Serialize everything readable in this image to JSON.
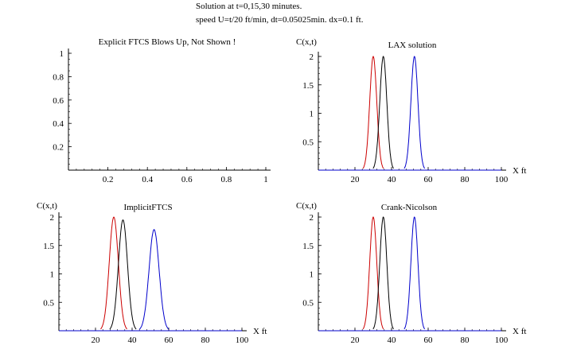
{
  "header": {
    "line1": "Solution at t=0,15,30 minutes.",
    "line2": "speed U=t/20 ft/min,  dt=0.05025min.   dx=0.1 ft."
  },
  "chart_data": [
    {
      "type": "line",
      "title": "Explicit FTCS Blows Up, Not Shown  !",
      "xlabel": "",
      "ylabel": "",
      "xlim": [
        0,
        1
      ],
      "ylim": [
        0,
        1
      ],
      "xticks": [
        "0.2",
        "0.4",
        "0.6",
        "0.8",
        "1"
      ],
      "yticks": [
        "0.2",
        "0.4",
        "0.6",
        "0.8",
        "1"
      ],
      "series": []
    },
    {
      "type": "line",
      "title": "LAX solution",
      "xlabel": "X ft",
      "ylabel": "C(x,t)",
      "xlim": [
        0,
        100
      ],
      "ylim": [
        0,
        2
      ],
      "xticks": [
        "20",
        "40",
        "60",
        "80",
        "100"
      ],
      "yticks": [
        "0.5",
        "1",
        "1.5",
        "2"
      ],
      "series": [
        {
          "color": "#cc0000",
          "center": 30,
          "height": 2,
          "halfwidth": 3.5
        },
        {
          "color": "#000000",
          "center": 35.5,
          "height": 2,
          "halfwidth": 3.5
        },
        {
          "color": "#0000cc",
          "center": 52.5,
          "height": 2,
          "halfwidth": 3.5
        }
      ]
    },
    {
      "type": "line",
      "title": "ImplicitFTCS",
      "xlabel": "X ft",
      "ylabel": "C(x,t)",
      "xlim": [
        0,
        100
      ],
      "ylim": [
        0,
        2
      ],
      "xticks": [
        "20",
        "40",
        "60",
        "80",
        "100"
      ],
      "yticks": [
        "0.5",
        "1",
        "1.5",
        "2"
      ],
      "series": [
        {
          "color": "#cc0000",
          "center": 30,
          "height": 2,
          "halfwidth": 4.5
        },
        {
          "color": "#000000",
          "center": 35,
          "height": 1.95,
          "halfwidth": 4.5
        },
        {
          "color": "#0000cc",
          "center": 52,
          "height": 1.78,
          "halfwidth": 5.0
        }
      ]
    },
    {
      "type": "line",
      "title": "Crank-Nicolson",
      "xlabel": "X ft",
      "ylabel": "C(x,t)",
      "xlim": [
        0,
        100
      ],
      "ylim": [
        0,
        2
      ],
      "xticks": [
        "20",
        "40",
        "60",
        "80",
        "100"
      ],
      "yticks": [
        "0.5",
        "1",
        "1.5",
        "2"
      ],
      "series": [
        {
          "color": "#cc0000",
          "center": 30,
          "height": 2,
          "halfwidth": 3.5
        },
        {
          "color": "#000000",
          "center": 35.5,
          "height": 2,
          "halfwidth": 3.5
        },
        {
          "color": "#0000cc",
          "center": 52.5,
          "height": 2,
          "halfwidth": 3.5
        }
      ]
    }
  ]
}
